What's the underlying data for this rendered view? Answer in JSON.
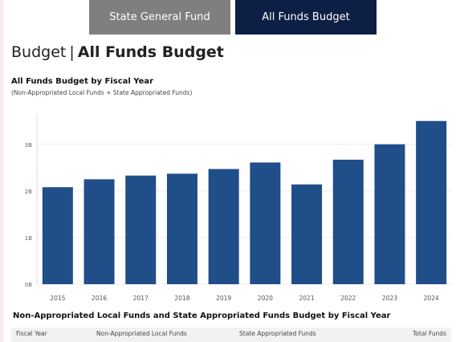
{
  "tabs": [
    {
      "label": "State General Fund",
      "active": false
    },
    {
      "label": "All Funds Budget",
      "active": true
    }
  ],
  "page_title": {
    "prefix": "Budget",
    "separator": "|",
    "main": "All Funds Budget"
  },
  "colors": {
    "bar": "#1f4e89",
    "tab_active": "#0d1f44",
    "tab_inactive": "#7f7f7f"
  },
  "chart_data": {
    "type": "bar",
    "title": "All Funds Budget by Fiscal Year",
    "subtitle": "(Non-Appropriated Local Funds + State Appropriated Funds)",
    "categories": [
      "2015",
      "2016",
      "2017",
      "2018",
      "2019",
      "2020",
      "2021",
      "2022",
      "2023",
      "2024"
    ],
    "values": [
      2.08,
      2.25,
      2.33,
      2.37,
      2.47,
      2.61,
      2.14,
      2.67,
      3.0,
      3.5
    ],
    "yticks": [
      0,
      1,
      2,
      3
    ],
    "ytick_labels": [
      "0B",
      "1B",
      "2B",
      "3B"
    ],
    "ylim": [
      0,
      3.65
    ],
    "xlabel": "",
    "ylabel": "",
    "grid": true
  },
  "table": {
    "title": "Non-Appropriated Local Funds and State Appropriated Funds Budget by Fiscal Year",
    "headers": [
      "Fiscal Year",
      "Non-Appropriated Local Funds",
      "State Appropriated Funds",
      "Total Funds"
    ]
  }
}
